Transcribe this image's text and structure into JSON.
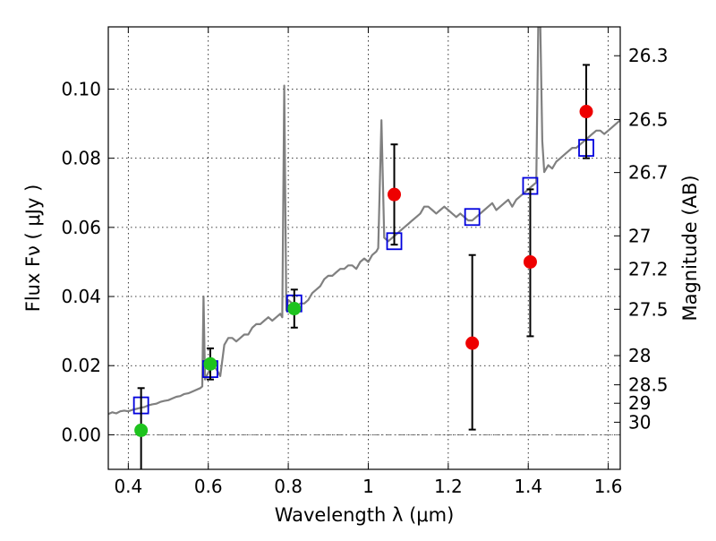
{
  "chart_data": {
    "type": "scatter",
    "title": "",
    "xlabel": "Wavelength  λ (μm)",
    "ylabel": "Flux  Fν  ( μJy )",
    "y2label": "Magnitude (AB)",
    "xlim": [
      0.35,
      1.63
    ],
    "ylim": [
      -0.01,
      0.118
    ],
    "x_ticks": [
      "0.4",
      "0.6",
      "0.8",
      "1",
      "1.2",
      "1.4",
      "1.6"
    ],
    "x_tick_values": [
      0.4,
      0.6,
      0.8,
      1.0,
      1.2,
      1.4,
      1.6
    ],
    "y_ticks": [
      "0.00",
      "0.02",
      "0.04",
      "0.06",
      "0.08",
      "0.10"
    ],
    "y_tick_values": [
      0.0,
      0.02,
      0.04,
      0.06,
      0.08,
      0.1
    ],
    "y2_ticks": [
      "26.3",
      "26.5",
      "26.7",
      "27",
      "27.2",
      "27.5",
      "28",
      "28.5",
      "29",
      "30"
    ],
    "y2_tick_magnitudes": [
      26.3,
      26.5,
      26.7,
      27.0,
      27.2,
      27.5,
      28.0,
      28.5,
      29.0,
      30.0
    ],
    "grid": true,
    "colors": {
      "spectrum": "#808080",
      "model_squares": "#0000dd",
      "optical_points": "#1ec31e",
      "nir_points": "#ee0000",
      "errorbars": "#000000",
      "zero_line": "#555555"
    },
    "series": [
      {
        "kind": "line",
        "points": [
          [
            0.35,
            0.006
          ],
          [
            0.36,
            0.0065
          ],
          [
            0.37,
            0.0062
          ],
          [
            0.38,
            0.0068
          ],
          [
            0.39,
            0.007
          ],
          [
            0.4,
            0.0068
          ],
          [
            0.41,
            0.0072
          ],
          [
            0.42,
            0.0075
          ],
          [
            0.43,
            0.0078
          ],
          [
            0.44,
            0.008
          ],
          [
            0.45,
            0.0085
          ],
          [
            0.46,
            0.0088
          ],
          [
            0.47,
            0.009
          ],
          [
            0.48,
            0.0095
          ],
          [
            0.49,
            0.0098
          ],
          [
            0.5,
            0.01
          ],
          [
            0.51,
            0.0105
          ],
          [
            0.52,
            0.011
          ],
          [
            0.53,
            0.0112
          ],
          [
            0.54,
            0.0118
          ],
          [
            0.55,
            0.012
          ],
          [
            0.56,
            0.0125
          ],
          [
            0.57,
            0.013
          ],
          [
            0.58,
            0.0135
          ],
          [
            0.585,
            0.014
          ],
          [
            0.588,
            0.04
          ],
          [
            0.592,
            0.016
          ],
          [
            0.6,
            0.018
          ],
          [
            0.61,
            0.02
          ],
          [
            0.62,
            0.019
          ],
          [
            0.63,
            0.017
          ],
          [
            0.64,
            0.026
          ],
          [
            0.65,
            0.028
          ],
          [
            0.66,
            0.028
          ],
          [
            0.67,
            0.027
          ],
          [
            0.68,
            0.028
          ],
          [
            0.69,
            0.029
          ],
          [
            0.7,
            0.029
          ],
          [
            0.71,
            0.031
          ],
          [
            0.72,
            0.032
          ],
          [
            0.73,
            0.032
          ],
          [
            0.74,
            0.033
          ],
          [
            0.75,
            0.034
          ],
          [
            0.76,
            0.033
          ],
          [
            0.77,
            0.034
          ],
          [
            0.78,
            0.035
          ],
          [
            0.785,
            0.034
          ],
          [
            0.79,
            0.101
          ],
          [
            0.795,
            0.036
          ],
          [
            0.8,
            0.039
          ],
          [
            0.81,
            0.038
          ],
          [
            0.82,
            0.037
          ],
          [
            0.83,
            0.038
          ],
          [
            0.84,
            0.038
          ],
          [
            0.85,
            0.039
          ],
          [
            0.86,
            0.041
          ],
          [
            0.87,
            0.042
          ],
          [
            0.88,
            0.043
          ],
          [
            0.89,
            0.045
          ],
          [
            0.9,
            0.046
          ],
          [
            0.91,
            0.046
          ],
          [
            0.92,
            0.047
          ],
          [
            0.93,
            0.048
          ],
          [
            0.94,
            0.048
          ],
          [
            0.95,
            0.049
          ],
          [
            0.96,
            0.049
          ],
          [
            0.97,
            0.048
          ],
          [
            0.98,
            0.05
          ],
          [
            0.99,
            0.051
          ],
          [
            1.0,
            0.05
          ],
          [
            1.01,
            0.052
          ],
          [
            1.02,
            0.053
          ],
          [
            1.025,
            0.054
          ],
          [
            1.033,
            0.091
          ],
          [
            1.04,
            0.057
          ],
          [
            1.05,
            0.056
          ],
          [
            1.06,
            0.057
          ],
          [
            1.07,
            0.058
          ],
          [
            1.08,
            0.059
          ],
          [
            1.09,
            0.06
          ],
          [
            1.1,
            0.061
          ],
          [
            1.11,
            0.062
          ],
          [
            1.12,
            0.063
          ],
          [
            1.13,
            0.064
          ],
          [
            1.14,
            0.066
          ],
          [
            1.15,
            0.066
          ],
          [
            1.16,
            0.065
          ],
          [
            1.17,
            0.064
          ],
          [
            1.18,
            0.065
          ],
          [
            1.19,
            0.066
          ],
          [
            1.2,
            0.065
          ],
          [
            1.21,
            0.064
          ],
          [
            1.22,
            0.063
          ],
          [
            1.23,
            0.064
          ],
          [
            1.24,
            0.063
          ],
          [
            1.25,
            0.062
          ],
          [
            1.26,
            0.062
          ],
          [
            1.27,
            0.063
          ],
          [
            1.28,
            0.064
          ],
          [
            1.29,
            0.065
          ],
          [
            1.3,
            0.066
          ],
          [
            1.31,
            0.067
          ],
          [
            1.32,
            0.065
          ],
          [
            1.33,
            0.066
          ],
          [
            1.34,
            0.067
          ],
          [
            1.35,
            0.068
          ],
          [
            1.36,
            0.066
          ],
          [
            1.37,
            0.068
          ],
          [
            1.38,
            0.069
          ],
          [
            1.39,
            0.07
          ],
          [
            1.4,
            0.071
          ],
          [
            1.41,
            0.072
          ],
          [
            1.42,
            0.073
          ],
          [
            1.425,
            0.118
          ],
          [
            1.43,
            0.12
          ],
          [
            1.435,
            0.085
          ],
          [
            1.44,
            0.076
          ],
          [
            1.45,
            0.078
          ],
          [
            1.46,
            0.077
          ],
          [
            1.47,
            0.079
          ],
          [
            1.48,
            0.08
          ],
          [
            1.49,
            0.081
          ],
          [
            1.5,
            0.082
          ],
          [
            1.51,
            0.083
          ],
          [
            1.52,
            0.083
          ],
          [
            1.53,
            0.084
          ],
          [
            1.54,
            0.085
          ],
          [
            1.55,
            0.086
          ],
          [
            1.56,
            0.087
          ],
          [
            1.57,
            0.088
          ],
          [
            1.58,
            0.088
          ],
          [
            1.59,
            0.087
          ],
          [
            1.6,
            0.088
          ],
          [
            1.61,
            0.089
          ],
          [
            1.62,
            0.09
          ],
          [
            1.63,
            0.091
          ]
        ]
      },
      {
        "kind": "squares",
        "points": [
          [
            0.432,
            0.0085
          ],
          [
            0.605,
            0.019
          ],
          [
            0.815,
            0.038
          ],
          [
            1.065,
            0.056
          ],
          [
            1.26,
            0.063
          ],
          [
            1.405,
            0.072
          ],
          [
            1.545,
            0.083
          ]
        ]
      },
      {
        "kind": "points",
        "color_key": "optical_points",
        "points": [
          {
            "x": 0.432,
            "y": 0.0013,
            "ylo": -0.012,
            "yhi": 0.0135
          },
          {
            "x": 0.605,
            "y": 0.0205,
            "ylo": 0.016,
            "yhi": 0.025
          },
          {
            "x": 0.815,
            "y": 0.0365,
            "ylo": 0.031,
            "yhi": 0.042
          }
        ]
      },
      {
        "kind": "points",
        "color_key": "nir_points",
        "points": [
          {
            "x": 1.065,
            "y": 0.0695,
            "ylo": 0.055,
            "yhi": 0.084
          },
          {
            "x": 1.26,
            "y": 0.0265,
            "ylo": 0.0015,
            "yhi": 0.052
          },
          {
            "x": 1.405,
            "y": 0.05,
            "ylo": 0.0285,
            "yhi": 0.071
          },
          {
            "x": 1.545,
            "y": 0.0935,
            "ylo": 0.08,
            "yhi": 0.107
          }
        ]
      }
    ]
  }
}
